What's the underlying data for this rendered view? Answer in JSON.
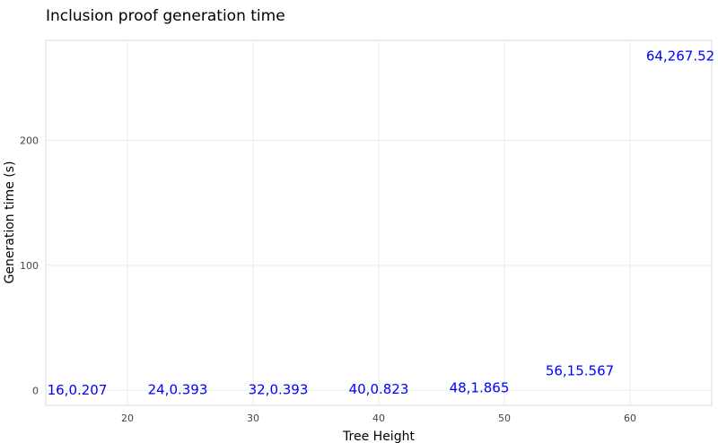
{
  "chart_data": {
    "type": "scatter",
    "title": "Inclusion proof generation time",
    "xlabel": "Tree Height",
    "ylabel": "Generation time (s)",
    "xlim": [
      13.5,
      66.5
    ],
    "ylim": [
      -12,
      280
    ],
    "xticks": [
      20,
      30,
      40,
      50,
      60
    ],
    "yticks": [
      0,
      100,
      200
    ],
    "grid": true,
    "series": [
      {
        "points": [
          {
            "x": 16,
            "y": 0.207,
            "label": "16,0.207"
          },
          {
            "x": 24,
            "y": 0.393,
            "label": "24,0.393"
          },
          {
            "x": 32,
            "y": 0.393,
            "label": "32,0.393"
          },
          {
            "x": 40,
            "y": 0.823,
            "label": "40,0.823"
          },
          {
            "x": 48,
            "y": 1.865,
            "label": "48,1.865"
          },
          {
            "x": 56,
            "y": 15.567,
            "label": "56,15.567"
          },
          {
            "x": 64,
            "y": 267.52,
            "label": "64,267.52"
          }
        ],
        "color": "#0000ff",
        "marker": "text"
      }
    ]
  }
}
